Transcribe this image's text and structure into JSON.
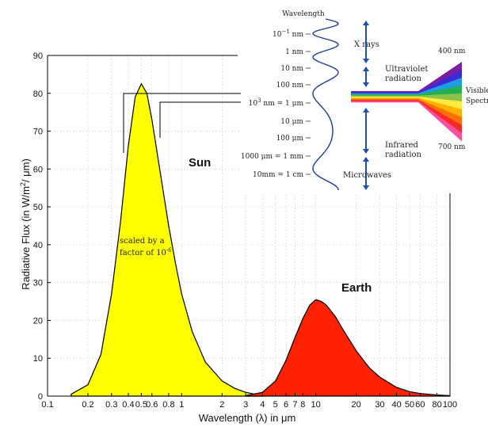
{
  "chart_data": {
    "type": "area",
    "xscale": "log",
    "xlim": [
      0.1,
      100
    ],
    "ylim": [
      0,
      90
    ],
    "grid": true,
    "xlabel": "Wavelength (λ) in μm",
    "ylabel_main": "Radiative Flux (in W/m",
    "ylabel_sup": "2",
    "ylabel_end": "/ μm)",
    "x_ticks": [
      {
        "v": 0.1,
        "label": "0.1"
      },
      {
        "v": 0.2,
        "label": "0.2"
      },
      {
        "v": 0.3,
        "label": "0.3"
      },
      {
        "v": 0.4,
        "label": "0.4"
      },
      {
        "v": 0.5,
        "label": "0.5"
      },
      {
        "v": 0.6,
        "label": "0.6"
      },
      {
        "v": 0.8,
        "label": "0.8"
      },
      {
        "v": 1,
        "label": "1"
      },
      {
        "v": 2,
        "label": "2"
      },
      {
        "v": 3,
        "label": "3"
      },
      {
        "v": 4,
        "label": "4"
      },
      {
        "v": 5,
        "label": "5"
      },
      {
        "v": 6,
        "label": "6"
      },
      {
        "v": 7,
        "label": "7"
      },
      {
        "v": 8,
        "label": "8"
      },
      {
        "v": 10,
        "label": "10"
      },
      {
        "v": 20,
        "label": "20"
      },
      {
        "v": 30,
        "label": "30"
      },
      {
        "v": 40,
        "label": "40"
      },
      {
        "v": 50,
        "label": "50"
      },
      {
        "v": 60,
        "label": "60"
      },
      {
        "v": 80,
        "label": "80"
      },
      {
        "v": 100,
        "label": "100"
      }
    ],
    "y_ticks": [
      0,
      10,
      20,
      30,
      40,
      50,
      60,
      70,
      80,
      90
    ],
    "series": [
      {
        "name": "Sun",
        "color": "#ffff00",
        "x": [
          0.15,
          0.2,
          0.25,
          0.3,
          0.35,
          0.4,
          0.45,
          0.5,
          0.55,
          0.6,
          0.7,
          0.8,
          0.9,
          1.0,
          1.2,
          1.5,
          2.0,
          2.5,
          3.0,
          3.5,
          4.0
        ],
        "y": [
          0.5,
          3,
          11,
          27,
          46,
          66,
          79,
          82.5,
          80,
          73,
          58,
          45,
          35,
          27,
          17,
          9,
          4,
          2,
          1,
          0.5,
          0.2
        ]
      },
      {
        "name": "Earth",
        "color": "#ff2200",
        "x": [
          3,
          4,
          5,
          6,
          7,
          8,
          9,
          10,
          11,
          12,
          14,
          16,
          20,
          25,
          30,
          40,
          50,
          60,
          80,
          100
        ],
        "y": [
          0.1,
          1,
          4,
          9.5,
          15.5,
          20.5,
          24,
          25.5,
          25,
          24,
          21,
          17.5,
          12,
          7.5,
          5,
          2.3,
          1.2,
          0.7,
          0.3,
          0.1
        ]
      }
    ],
    "annotations": {
      "scaled_line1": "scaled by a",
      "scaled_line2": "factor of 10",
      "scaled_exp": "-6"
    }
  },
  "spectrum_inset": {
    "title": "Wavelength",
    "scale_labels": [
      {
        "base": "10",
        "exp": "−1",
        "unit": " nm"
      },
      {
        "base": "1 nm"
      },
      {
        "base": "10 nm"
      },
      {
        "base": "100 nm"
      },
      {
        "base": "10",
        "exp": "3",
        "unit": " nm = 1 μm"
      },
      {
        "base": "10 μm"
      },
      {
        "base": "100 μm"
      },
      {
        "base": "1000 μm = 1 mm"
      },
      {
        "base": "10mm = 1 cm"
      }
    ],
    "band_labels": {
      "xrays": "X rays",
      "uv1": "Ultraviolet",
      "uv2": "radiation",
      "ir1": "Infrared",
      "ir2": "radiation",
      "microwaves": "Microwaves",
      "nm400": "400 nm",
      "nm700": "700 nm",
      "visible1": "Visible",
      "visible2": "Spectrum"
    },
    "visible_colors": [
      "#7a1fa2",
      "#3a2bd6",
      "#1f9be0",
      "#22b14c",
      "#8bc34a",
      "#ffeb3b",
      "#ffb300",
      "#ff6f00",
      "#f42a2a",
      "#ff4fa0"
    ]
  }
}
